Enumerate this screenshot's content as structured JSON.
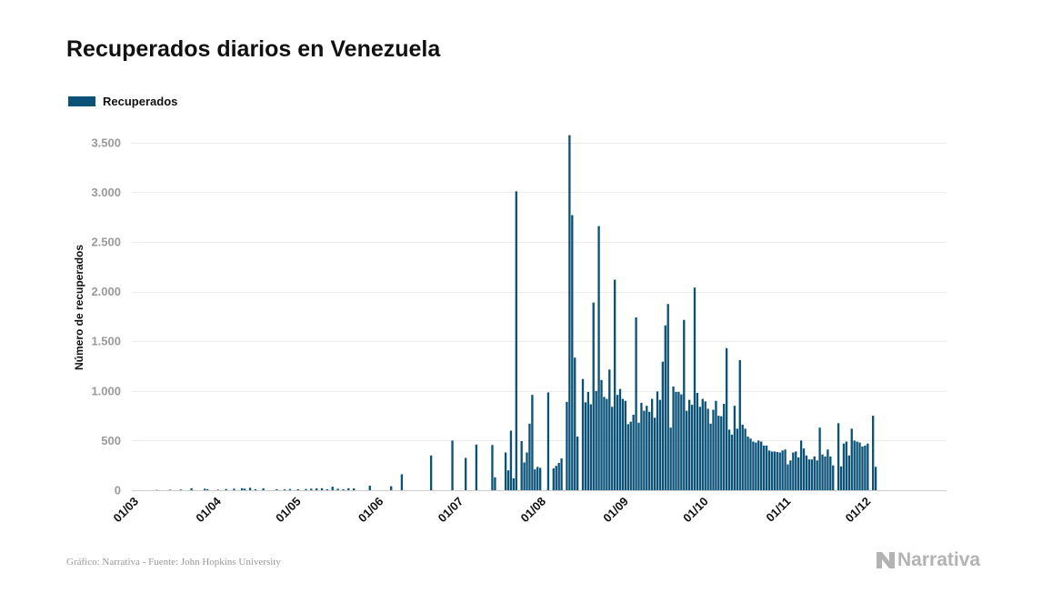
{
  "title": "Recuperados diarios en Venezuela",
  "legend": {
    "label": "Recuperados",
    "color": "#0b5278"
  },
  "source": "Gráfico: Narrativa - Fuente: John Hopkins University",
  "brand": "Narrativa",
  "chart_data": {
    "type": "bar",
    "title": "Recuperados diarios en Venezuela",
    "ylabel": "Número de recuperados",
    "xlabel": "",
    "ylim": [
      0,
      3700
    ],
    "yticks": [
      0,
      500,
      1000,
      1500,
      2000,
      2500,
      3000,
      3500
    ],
    "ytick_labels": [
      "0",
      "500",
      "1.000",
      "1.500",
      "2.000",
      "2.500",
      "3.000",
      "3.500"
    ],
    "x_start": "2020-03-01",
    "x_end": "2020-12-31",
    "xtick_labels": [
      "01/03",
      "01/04",
      "01/05",
      "01/06",
      "01/07",
      "01/08",
      "01/09",
      "01/10",
      "01/11",
      "01/12"
    ],
    "grid": true,
    "legend_position": "top-left",
    "series": [
      {
        "name": "Recuperados",
        "color": "#0b5278",
        "points": [
          [
            "2020-03-10",
            3
          ],
          [
            "2020-03-15",
            5
          ],
          [
            "2020-03-19",
            7
          ],
          [
            "2020-03-23",
            20
          ],
          [
            "2020-03-28",
            15
          ],
          [
            "2020-03-29",
            10
          ],
          [
            "2020-04-02",
            5
          ],
          [
            "2020-04-05",
            12
          ],
          [
            "2020-04-08",
            15
          ],
          [
            "2020-04-11",
            20
          ],
          [
            "2020-04-12",
            15
          ],
          [
            "2020-04-14",
            25
          ],
          [
            "2020-04-16",
            10
          ],
          [
            "2020-04-19",
            18
          ],
          [
            "2020-04-24",
            10
          ],
          [
            "2020-04-27",
            8
          ],
          [
            "2020-04-29",
            12
          ],
          [
            "2020-05-02",
            10
          ],
          [
            "2020-05-05",
            12
          ],
          [
            "2020-05-07",
            15
          ],
          [
            "2020-05-09",
            18
          ],
          [
            "2020-05-11",
            20
          ],
          [
            "2020-05-13",
            10
          ],
          [
            "2020-05-15",
            35
          ],
          [
            "2020-05-17",
            15
          ],
          [
            "2020-05-19",
            10
          ],
          [
            "2020-05-21",
            20
          ],
          [
            "2020-05-23",
            18
          ],
          [
            "2020-05-29",
            45
          ],
          [
            "2020-06-06",
            40
          ],
          [
            "2020-06-10",
            160
          ],
          [
            "2020-06-21",
            350
          ],
          [
            "2020-06-29",
            500
          ],
          [
            "2020-07-04",
            325
          ],
          [
            "2020-07-08",
            460
          ],
          [
            "2020-07-14",
            455
          ],
          [
            "2020-07-15",
            130
          ],
          [
            "2020-07-19",
            380
          ],
          [
            "2020-07-20",
            200
          ],
          [
            "2020-07-21",
            600
          ],
          [
            "2020-07-22",
            120
          ],
          [
            "2020-07-23",
            3010
          ],
          [
            "2020-07-25",
            495
          ],
          [
            "2020-07-26",
            280
          ],
          [
            "2020-07-27",
            380
          ],
          [
            "2020-07-28",
            670
          ],
          [
            "2020-07-29",
            960
          ],
          [
            "2020-07-30",
            210
          ],
          [
            "2020-07-31",
            235
          ],
          [
            "2020-08-01",
            225
          ],
          [
            "2020-08-04",
            985
          ],
          [
            "2020-08-06",
            220
          ],
          [
            "2020-08-07",
            245
          ],
          [
            "2020-08-08",
            275
          ],
          [
            "2020-08-09",
            320
          ],
          [
            "2020-08-11",
            890
          ],
          [
            "2020-08-12",
            3575
          ],
          [
            "2020-08-13",
            2770
          ],
          [
            "2020-08-14",
            1335
          ],
          [
            "2020-08-15",
            540
          ],
          [
            "2020-08-17",
            1120
          ],
          [
            "2020-08-18",
            885
          ],
          [
            "2020-08-19",
            990
          ],
          [
            "2020-08-20",
            865
          ],
          [
            "2020-08-21",
            1890
          ],
          [
            "2020-08-22",
            1000
          ],
          [
            "2020-08-23",
            2660
          ],
          [
            "2020-08-24",
            1110
          ],
          [
            "2020-08-25",
            940
          ],
          [
            "2020-08-26",
            920
          ],
          [
            "2020-08-27",
            1215
          ],
          [
            "2020-08-28",
            840
          ],
          [
            "2020-08-29",
            2120
          ],
          [
            "2020-08-30",
            960
          ],
          [
            "2020-08-31",
            1020
          ],
          [
            "2020-09-01",
            920
          ],
          [
            "2020-09-02",
            900
          ],
          [
            "2020-09-03",
            665
          ],
          [
            "2020-09-04",
            690
          ],
          [
            "2020-09-05",
            760
          ],
          [
            "2020-09-06",
            1740
          ],
          [
            "2020-09-07",
            680
          ],
          [
            "2020-09-08",
            880
          ],
          [
            "2020-09-09",
            800
          ],
          [
            "2020-09-10",
            850
          ],
          [
            "2020-09-11",
            790
          ],
          [
            "2020-09-12",
            920
          ],
          [
            "2020-09-13",
            730
          ],
          [
            "2020-09-14",
            995
          ],
          [
            "2020-09-15",
            910
          ],
          [
            "2020-09-16",
            1295
          ],
          [
            "2020-09-17",
            1660
          ],
          [
            "2020-09-18",
            1875
          ],
          [
            "2020-09-19",
            630
          ],
          [
            "2020-09-20",
            1045
          ],
          [
            "2020-09-21",
            990
          ],
          [
            "2020-09-22",
            990
          ],
          [
            "2020-09-23",
            965
          ],
          [
            "2020-09-24",
            1715
          ],
          [
            "2020-09-25",
            800
          ],
          [
            "2020-09-26",
            910
          ],
          [
            "2020-09-27",
            860
          ],
          [
            "2020-09-28",
            2040
          ],
          [
            "2020-09-29",
            980
          ],
          [
            "2020-09-30",
            840
          ],
          [
            "2020-10-01",
            920
          ],
          [
            "2020-10-02",
            895
          ],
          [
            "2020-10-03",
            820
          ],
          [
            "2020-10-04",
            670
          ],
          [
            "2020-10-05",
            810
          ],
          [
            "2020-10-06",
            900
          ],
          [
            "2020-10-07",
            750
          ],
          [
            "2020-10-08",
            745
          ],
          [
            "2020-10-09",
            870
          ],
          [
            "2020-10-10",
            1430
          ],
          [
            "2020-10-11",
            610
          ],
          [
            "2020-10-12",
            560
          ],
          [
            "2020-10-13",
            850
          ],
          [
            "2020-10-14",
            620
          ],
          [
            "2020-10-15",
            1310
          ],
          [
            "2020-10-16",
            660
          ],
          [
            "2020-10-17",
            620
          ],
          [
            "2020-10-18",
            540
          ],
          [
            "2020-10-19",
            520
          ],
          [
            "2020-10-20",
            490
          ],
          [
            "2020-10-21",
            480
          ],
          [
            "2020-10-22",
            500
          ],
          [
            "2020-10-23",
            490
          ],
          [
            "2020-10-24",
            450
          ],
          [
            "2020-10-25",
            450
          ],
          [
            "2020-10-26",
            400
          ],
          [
            "2020-10-27",
            390
          ],
          [
            "2020-10-28",
            390
          ],
          [
            "2020-10-29",
            385
          ],
          [
            "2020-10-30",
            380
          ],
          [
            "2020-10-31",
            400
          ],
          [
            "2020-11-01",
            410
          ],
          [
            "2020-11-02",
            260
          ],
          [
            "2020-11-03",
            300
          ],
          [
            "2020-11-04",
            380
          ],
          [
            "2020-11-05",
            390
          ],
          [
            "2020-11-06",
            330
          ],
          [
            "2020-11-07",
            500
          ],
          [
            "2020-11-08",
            420
          ],
          [
            "2020-11-09",
            350
          ],
          [
            "2020-11-10",
            310
          ],
          [
            "2020-11-11",
            310
          ],
          [
            "2020-11-12",
            340
          ],
          [
            "2020-11-13",
            300
          ],
          [
            "2020-11-14",
            630
          ],
          [
            "2020-11-15",
            360
          ],
          [
            "2020-11-16",
            340
          ],
          [
            "2020-11-17",
            410
          ],
          [
            "2020-11-18",
            340
          ],
          [
            "2020-11-19",
            250
          ],
          [
            "2020-11-21",
            675
          ],
          [
            "2020-11-22",
            240
          ],
          [
            "2020-11-23",
            470
          ],
          [
            "2020-11-24",
            490
          ],
          [
            "2020-11-25",
            350
          ],
          [
            "2020-11-26",
            620
          ],
          [
            "2020-11-27",
            500
          ],
          [
            "2020-11-28",
            490
          ],
          [
            "2020-11-29",
            480
          ],
          [
            "2020-11-30",
            440
          ],
          [
            "2020-12-01",
            450
          ],
          [
            "2020-12-02",
            470
          ],
          [
            "2020-12-04",
            750
          ],
          [
            "2020-12-05",
            235
          ]
        ]
      }
    ]
  }
}
